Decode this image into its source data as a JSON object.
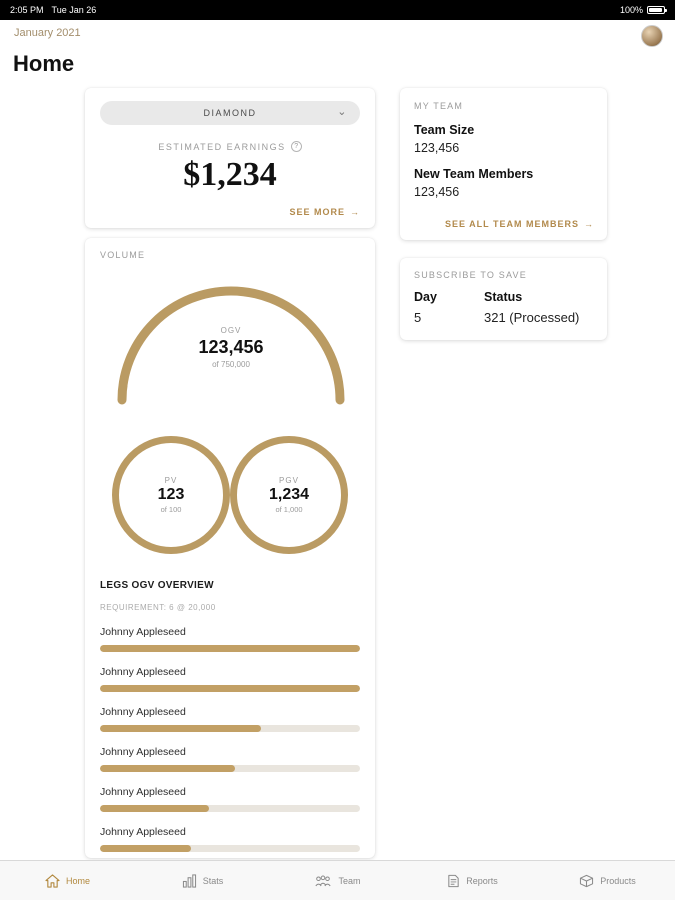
{
  "status_bar": {
    "time": "2:05 PM",
    "date": "Tue Jan 26",
    "battery": "100%"
  },
  "header": {
    "month": "January 2021",
    "title": "Home"
  },
  "earnings_card": {
    "rank_selector": "DIAMOND",
    "label": "ESTIMATED EARNINGS",
    "info_glyph": "?",
    "amount": "$1,234",
    "see_more": "SEE MORE",
    "arrow": "→",
    "chevron": "⌄"
  },
  "volume_card": {
    "title": "VOLUME",
    "gauge": {
      "label": "OGV",
      "value": "123,456",
      "of": "of 750,000"
    },
    "pv": {
      "label": "PV",
      "value": "123",
      "of": "of 100"
    },
    "pgv": {
      "label": "PGV",
      "value": "1,234",
      "of": "of 1,000"
    },
    "legs": {
      "title": "LEGS OGV OVERVIEW",
      "requirement": "REQUIREMENT: 6 @ 20,000",
      "items": [
        {
          "name": "Johnny Appleseed",
          "percent": 100
        },
        {
          "name": "Johnny Appleseed",
          "percent": 100
        },
        {
          "name": "Johnny Appleseed",
          "percent": 62
        },
        {
          "name": "Johnny Appleseed",
          "percent": 52
        },
        {
          "name": "Johnny Appleseed",
          "percent": 42
        },
        {
          "name": "Johnny Appleseed",
          "percent": 35
        }
      ]
    }
  },
  "team_card": {
    "title": "MY TEAM",
    "team_size_label": "Team Size",
    "team_size_value": "123,456",
    "new_members_label": "New Team Members",
    "new_members_value": "123,456",
    "see_all": "SEE ALL TEAM MEMBERS",
    "arrow": "→"
  },
  "subscribe_card": {
    "title": "SUBSCRIBE TO SAVE",
    "col_day": "Day",
    "col_status": "Status",
    "day_value": "5",
    "status_value": "321 (Processed)"
  },
  "tab_bar": {
    "items": [
      {
        "label": "Home",
        "icon": "home-icon",
        "active": true
      },
      {
        "label": "Stats",
        "icon": "stats-icon",
        "active": false
      },
      {
        "label": "Team",
        "icon": "team-icon",
        "active": false
      },
      {
        "label": "Reports",
        "icon": "reports-icon",
        "active": false
      },
      {
        "label": "Products",
        "icon": "products-icon",
        "active": false
      }
    ]
  },
  "colors": {
    "accent": "#ba9b63",
    "link_gold": "#b28a4c",
    "progress_fill": "#c2a065",
    "progress_track": "#e9e5de"
  }
}
